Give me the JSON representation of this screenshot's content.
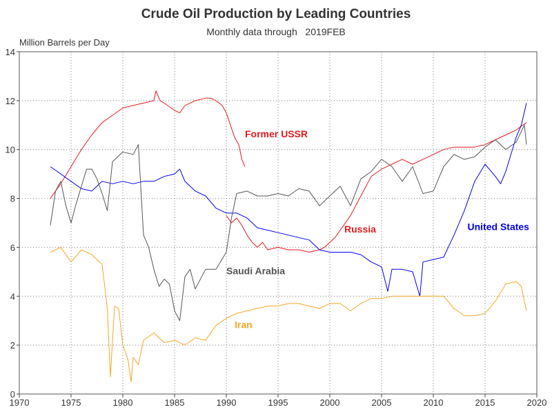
{
  "chart_data": {
    "type": "line",
    "title": "Crude Oil Production by Leading Countries",
    "subtitle": "Monthly data through   2019FEB",
    "ylabel": "Million Barrels per Day",
    "xlim": [
      1970,
      2020
    ],
    "ylim": [
      0,
      14
    ],
    "xticks": [
      1970,
      1975,
      1980,
      1985,
      1990,
      1995,
      2000,
      2005,
      2010,
      2015,
      2020
    ],
    "yticks": [
      0,
      2,
      4,
      6,
      8,
      10,
      12,
      14
    ],
    "grid": true,
    "series": [
      {
        "name": "Former USSR",
        "color": "#e31a1c",
        "label_at": [
          1991.8,
          10.5
        ],
        "points": [
          [
            1973.0,
            8.0
          ],
          [
            1974.0,
            8.6
          ],
          [
            1975.0,
            9.3
          ],
          [
            1976.0,
            10.0
          ],
          [
            1977.0,
            10.6
          ],
          [
            1978.0,
            11.1
          ],
          [
            1979.0,
            11.4
          ],
          [
            1980.0,
            11.7
          ],
          [
            1981.0,
            11.8
          ],
          [
            1982.0,
            11.9
          ],
          [
            1983.0,
            12.0
          ],
          [
            1983.2,
            12.4
          ],
          [
            1983.6,
            12.0
          ],
          [
            1984.0,
            11.9
          ],
          [
            1985.0,
            11.6
          ],
          [
            1985.5,
            11.5
          ],
          [
            1986.0,
            11.8
          ],
          [
            1987.0,
            12.0
          ],
          [
            1988.0,
            12.1
          ],
          [
            1988.5,
            12.1
          ],
          [
            1989.0,
            12.0
          ],
          [
            1989.6,
            11.8
          ],
          [
            1990.0,
            11.5
          ],
          [
            1990.4,
            11.0
          ],
          [
            1990.8,
            10.5
          ],
          [
            1991.2,
            10.2
          ],
          [
            1991.5,
            9.6
          ],
          [
            1991.8,
            9.3
          ]
        ]
      },
      {
        "name": "Russia",
        "color": "#e31a1c",
        "label_at": [
          2001.4,
          6.6
        ],
        "points": [
          [
            1990.0,
            7.3
          ],
          [
            1990.5,
            7.0
          ],
          [
            1991.0,
            7.2
          ],
          [
            1991.5,
            6.9
          ],
          [
            1992.0,
            6.5
          ],
          [
            1992.5,
            6.2
          ],
          [
            1993.0,
            6.0
          ],
          [
            1993.5,
            6.2
          ],
          [
            1994.0,
            5.9
          ],
          [
            1995.0,
            6.0
          ],
          [
            1996.0,
            5.9
          ],
          [
            1997.0,
            5.9
          ],
          [
            1998.0,
            5.8
          ],
          [
            1999.0,
            5.9
          ],
          [
            1999.5,
            6.0
          ],
          [
            2000.0,
            6.2
          ],
          [
            2000.5,
            6.4
          ],
          [
            2001.0,
            6.7
          ],
          [
            2002.0,
            7.3
          ],
          [
            2003.0,
            8.1
          ],
          [
            2004.0,
            8.9
          ],
          [
            2005.0,
            9.2
          ],
          [
            2006.0,
            9.4
          ],
          [
            2007.0,
            9.6
          ],
          [
            2008.0,
            9.4
          ],
          [
            2009.0,
            9.6
          ],
          [
            2010.0,
            9.8
          ],
          [
            2011.0,
            10.0
          ],
          [
            2012.0,
            10.1
          ],
          [
            2013.0,
            10.1
          ],
          [
            2014.0,
            10.1
          ],
          [
            2015.0,
            10.2
          ],
          [
            2016.0,
            10.4
          ],
          [
            2017.0,
            10.6
          ],
          [
            2018.0,
            10.8
          ],
          [
            2019.0,
            11.1
          ]
        ]
      },
      {
        "name": "United States",
        "color": "#0000ee",
        "label_at": [
          2013.3,
          6.7
        ],
        "points": [
          [
            1973.0,
            9.3
          ],
          [
            1974.0,
            9.0
          ],
          [
            1975.0,
            8.7
          ],
          [
            1976.0,
            8.4
          ],
          [
            1977.0,
            8.3
          ],
          [
            1978.0,
            8.7
          ],
          [
            1979.0,
            8.6
          ],
          [
            1980.0,
            8.7
          ],
          [
            1981.0,
            8.6
          ],
          [
            1982.0,
            8.7
          ],
          [
            1983.0,
            8.7
          ],
          [
            1984.0,
            8.9
          ],
          [
            1985.0,
            9.0
          ],
          [
            1985.5,
            9.2
          ],
          [
            1986.0,
            8.7
          ],
          [
            1987.0,
            8.3
          ],
          [
            1988.0,
            8.1
          ],
          [
            1989.0,
            7.6
          ],
          [
            1990.0,
            7.4
          ],
          [
            1991.0,
            7.4
          ],
          [
            1992.0,
            7.2
          ],
          [
            1993.0,
            6.8
          ],
          [
            1994.0,
            6.7
          ],
          [
            1995.0,
            6.6
          ],
          [
            1996.0,
            6.5
          ],
          [
            1997.0,
            6.4
          ],
          [
            1998.0,
            6.3
          ],
          [
            1999.0,
            5.9
          ],
          [
            2000.0,
            5.8
          ],
          [
            2001.0,
            5.8
          ],
          [
            2002.0,
            5.8
          ],
          [
            2003.0,
            5.7
          ],
          [
            2004.0,
            5.4
          ],
          [
            2005.0,
            5.2
          ],
          [
            2005.6,
            4.2
          ],
          [
            2006.0,
            5.1
          ],
          [
            2007.0,
            5.1
          ],
          [
            2008.0,
            5.0
          ],
          [
            2008.7,
            4.0
          ],
          [
            2009.0,
            5.4
          ],
          [
            2010.0,
            5.5
          ],
          [
            2011.0,
            5.6
          ],
          [
            2012.0,
            6.5
          ],
          [
            2013.0,
            7.5
          ],
          [
            2014.0,
            8.7
          ],
          [
            2015.0,
            9.4
          ],
          [
            2016.0,
            8.9
          ],
          [
            2016.5,
            8.6
          ],
          [
            2017.0,
            9.1
          ],
          [
            2018.0,
            10.5
          ],
          [
            2018.5,
            11.0
          ],
          [
            2019.0,
            11.9
          ]
        ]
      },
      {
        "name": "Saudi Arabia",
        "color": "#555555",
        "label_at": [
          1990.0,
          4.9
        ],
        "points": [
          [
            1973.0,
            6.9
          ],
          [
            1973.5,
            8.3
          ],
          [
            1974.0,
            8.7
          ],
          [
            1974.5,
            7.7
          ],
          [
            1975.0,
            7.0
          ],
          [
            1975.5,
            7.8
          ],
          [
            1976.0,
            8.5
          ],
          [
            1976.5,
            9.2
          ],
          [
            1977.0,
            9.2
          ],
          [
            1977.5,
            8.8
          ],
          [
            1978.0,
            8.2
          ],
          [
            1978.5,
            7.5
          ],
          [
            1979.0,
            9.5
          ],
          [
            1980.0,
            9.9
          ],
          [
            1981.0,
            9.8
          ],
          [
            1981.5,
            10.2
          ],
          [
            1982.0,
            6.5
          ],
          [
            1982.5,
            6.0
          ],
          [
            1983.0,
            5.1
          ],
          [
            1983.5,
            4.4
          ],
          [
            1984.0,
            4.7
          ],
          [
            1984.5,
            4.5
          ],
          [
            1985.0,
            3.4
          ],
          [
            1985.5,
            3.0
          ],
          [
            1986.0,
            4.8
          ],
          [
            1986.5,
            5.1
          ],
          [
            1987.0,
            4.3
          ],
          [
            1988.0,
            5.1
          ],
          [
            1989.0,
            5.1
          ],
          [
            1990.0,
            5.8
          ],
          [
            1990.5,
            7.2
          ],
          [
            1991.0,
            8.2
          ],
          [
            1992.0,
            8.3
          ],
          [
            1993.0,
            8.1
          ],
          [
            1994.0,
            8.1
          ],
          [
            1995.0,
            8.2
          ],
          [
            1996.0,
            8.1
          ],
          [
            1997.0,
            8.4
          ],
          [
            1998.0,
            8.3
          ],
          [
            1999.0,
            7.7
          ],
          [
            2000.0,
            8.1
          ],
          [
            2001.0,
            8.5
          ],
          [
            2002.0,
            7.7
          ],
          [
            2003.0,
            8.8
          ],
          [
            2004.0,
            9.1
          ],
          [
            2005.0,
            9.6
          ],
          [
            2006.0,
            9.3
          ],
          [
            2007.0,
            8.7
          ],
          [
            2008.0,
            9.3
          ],
          [
            2009.0,
            8.2
          ],
          [
            2010.0,
            8.3
          ],
          [
            2011.0,
            9.3
          ],
          [
            2012.0,
            9.8
          ],
          [
            2013.0,
            9.6
          ],
          [
            2014.0,
            9.7
          ],
          [
            2015.0,
            10.1
          ],
          [
            2016.0,
            10.4
          ],
          [
            2017.0,
            10.0
          ],
          [
            2018.0,
            10.3
          ],
          [
            2018.8,
            11.0
          ],
          [
            2019.0,
            10.2
          ]
        ]
      },
      {
        "name": "Iran",
        "color": "#f5a623",
        "label_at": [
          1990.8,
          2.7
        ],
        "points": [
          [
            1973.0,
            5.8
          ],
          [
            1974.0,
            6.0
          ],
          [
            1975.0,
            5.4
          ],
          [
            1976.0,
            5.9
          ],
          [
            1977.0,
            5.7
          ],
          [
            1978.0,
            5.3
          ],
          [
            1978.5,
            3.5
          ],
          [
            1978.8,
            0.7
          ],
          [
            1979.2,
            3.6
          ],
          [
            1979.6,
            3.5
          ],
          [
            1980.0,
            2.0
          ],
          [
            1980.5,
            1.4
          ],
          [
            1980.8,
            0.5
          ],
          [
            1981.0,
            1.5
          ],
          [
            1981.5,
            1.2
          ],
          [
            1982.0,
            2.2
          ],
          [
            1983.0,
            2.5
          ],
          [
            1984.0,
            2.1
          ],
          [
            1985.0,
            2.2
          ],
          [
            1986.0,
            2.0
          ],
          [
            1987.0,
            2.3
          ],
          [
            1988.0,
            2.2
          ],
          [
            1989.0,
            2.8
          ],
          [
            1990.0,
            3.1
          ],
          [
            1991.0,
            3.3
          ],
          [
            1992.0,
            3.4
          ],
          [
            1993.0,
            3.5
          ],
          [
            1994.0,
            3.6
          ],
          [
            1995.0,
            3.6
          ],
          [
            1996.0,
            3.7
          ],
          [
            1997.0,
            3.7
          ],
          [
            1998.0,
            3.6
          ],
          [
            1999.0,
            3.5
          ],
          [
            2000.0,
            3.7
          ],
          [
            2001.0,
            3.7
          ],
          [
            2002.0,
            3.4
          ],
          [
            2003.0,
            3.7
          ],
          [
            2004.0,
            3.9
          ],
          [
            2005.0,
            3.9
          ],
          [
            2006.0,
            4.0
          ],
          [
            2007.0,
            4.0
          ],
          [
            2008.0,
            4.0
          ],
          [
            2009.0,
            4.0
          ],
          [
            2010.0,
            4.0
          ],
          [
            2011.0,
            4.0
          ],
          [
            2012.0,
            3.5
          ],
          [
            2013.0,
            3.2
          ],
          [
            2014.0,
            3.2
          ],
          [
            2015.0,
            3.3
          ],
          [
            2016.0,
            3.8
          ],
          [
            2017.0,
            4.5
          ],
          [
            2018.0,
            4.6
          ],
          [
            2018.5,
            4.4
          ],
          [
            2019.0,
            3.4
          ]
        ]
      }
    ]
  }
}
